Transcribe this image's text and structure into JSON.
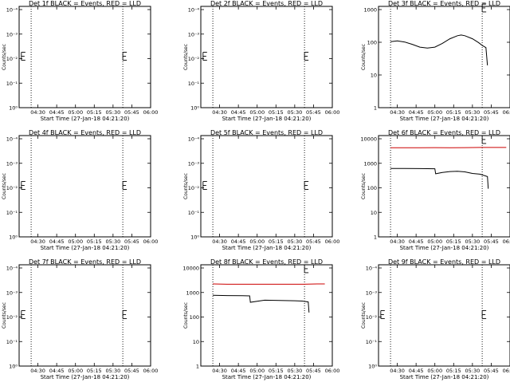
{
  "chart_data": [
    {
      "id": "det1",
      "type": "line",
      "title": "Det 1f BLACK = Events, RED = LLD",
      "xlabel": "Start Time (27-Jan-18 04:21:20)",
      "ylabel": "Counts/sec",
      "yscale": "log",
      "ylim": [
        0.5,
        1.2
      ],
      "xlim": [
        4.25,
        6.0
      ],
      "x_ticks": [
        "04:30",
        "04:45",
        "05:00",
        "05:15",
        "05:30",
        "05:45",
        "06:00"
      ],
      "y_ticks": [
        "10^0",
        "10^-1",
        "10^-2",
        "10^-3",
        "10^-4"
      ],
      "marks": [
        4.41,
        5.63
      ],
      "series": [],
      "e_markers": [
        {
          "x": 4.28,
          "y": 0.78
        },
        {
          "x": 5.63,
          "y": 0.78
        }
      ]
    },
    {
      "id": "det2",
      "type": "line",
      "title": "Det 2f BLACK = Events, RED = LLD",
      "xlabel": "Start Time (27-Jan-18 04:21:20)",
      "ylabel": "Counts/sec",
      "yscale": "log",
      "ylim": [
        0.5,
        1.2
      ],
      "xlim": [
        4.25,
        6.0
      ],
      "x_ticks": [
        "04:30",
        "04:45",
        "05:00",
        "05:15",
        "05:30",
        "05:45",
        "06:00"
      ],
      "y_ticks": [
        "10^0",
        "10^-1",
        "10^-2",
        "10^-3",
        "10^-4"
      ],
      "marks": [
        4.41,
        5.63
      ],
      "series": [],
      "e_markers": [
        {
          "x": 4.28,
          "y": 0.78
        },
        {
          "x": 5.63,
          "y": 0.78
        }
      ]
    },
    {
      "id": "det3",
      "type": "line",
      "title": "Det 3f BLACK = Events, RED = LLD",
      "xlabel": "Start Time (27-Jan-18 04:21:20)",
      "ylabel": "Counts/sec",
      "yscale": "log",
      "ylim": [
        1,
        1000
      ],
      "xlim": [
        4.25,
        6.0
      ],
      "x_ticks": [
        "04:30",
        "04:45",
        "05:00",
        "05:15",
        "05:30",
        "05:45",
        "06:00"
      ],
      "y_ticks": [
        "1",
        "10",
        "100",
        "1000"
      ],
      "marks": [
        4.41,
        5.63
      ],
      "e_markers": [
        {
          "x": 5.63,
          "y": 900
        }
      ],
      "series": [
        {
          "color": "#000000",
          "points": [
            [
              4.41,
              90
            ],
            [
              4.5,
              95
            ],
            [
              4.6,
              88
            ],
            [
              4.7,
              75
            ],
            [
              4.8,
              62
            ],
            [
              4.9,
              58
            ],
            [
              5.0,
              62
            ],
            [
              5.1,
              80
            ],
            [
              5.2,
              110
            ],
            [
              5.3,
              135
            ],
            [
              5.35,
              142
            ],
            [
              5.4,
              135
            ],
            [
              5.5,
              110
            ],
            [
              5.58,
              85
            ],
            [
              5.63,
              70
            ],
            [
              5.68,
              60
            ],
            [
              5.7,
              18
            ]
          ]
        }
      ]
    },
    {
      "id": "det4",
      "type": "line",
      "title": "Det 4f BLACK = Events, RED = LLD",
      "xlabel": "Start Time (27-Jan-18 04:21:20)",
      "ylabel": "Counts/sec",
      "yscale": "log",
      "ylim": [
        0.5,
        1.2
      ],
      "xlim": [
        4.25,
        6.0
      ],
      "x_ticks": [
        "04:30",
        "04:45",
        "05:00",
        "05:15",
        "05:30",
        "05:45",
        "06:00"
      ],
      "y_ticks": [
        "10^0",
        "10^-1",
        "10^-2",
        "10^-3",
        "10^-4"
      ],
      "marks": [
        4.41,
        5.63
      ],
      "series": [],
      "e_markers": [
        {
          "x": 4.28,
          "y": 0.78
        },
        {
          "x": 5.63,
          "y": 0.78
        }
      ]
    },
    {
      "id": "det5",
      "type": "line",
      "title": "Det 5f BLACK = Events, RED = LLD",
      "xlabel": "Start Time (27-Jan-18 04:21:20)",
      "ylabel": "Counts/sec",
      "yscale": "log",
      "ylim": [
        0.5,
        1.2
      ],
      "xlim": [
        4.25,
        6.0
      ],
      "x_ticks": [
        "04:30",
        "04:45",
        "05:00",
        "05:15",
        "05:30",
        "05:45",
        "06:00"
      ],
      "y_ticks": [
        "10^0",
        "10^-1",
        "10^-2",
        "10^-3",
        "10^-4"
      ],
      "marks": [
        4.41,
        5.63
      ],
      "series": [],
      "e_markers": [
        {
          "x": 4.28,
          "y": 0.78
        },
        {
          "x": 5.63,
          "y": 0.78
        }
      ]
    },
    {
      "id": "det6",
      "type": "line",
      "title": "Det 6f BLACK = Events, RED = LLD",
      "xlabel": "Start Time (27-Jan-18 04:21:20)",
      "ylabel": "Counts/sec",
      "yscale": "log",
      "ylim": [
        1,
        10000
      ],
      "xlim": [
        4.25,
        6.0
      ],
      "x_ticks": [
        "04:30",
        "04:45",
        "05:00",
        "05:15",
        "05:30",
        "05:45",
        "06:00"
      ],
      "y_ticks": [
        "1",
        "10",
        "100",
        "1000",
        "10000"
      ],
      "marks": [
        4.41,
        5.63
      ],
      "e_markers": [
        {
          "x": 5.63,
          "y": 7000
        }
      ],
      "series": [
        {
          "color": "#cc0000",
          "points": [
            [
              4.41,
              3300
            ],
            [
              4.6,
              3300
            ],
            [
              4.8,
              3300
            ],
            [
              5.0,
              3350
            ],
            [
              5.2,
              3300
            ],
            [
              5.4,
              3350
            ],
            [
              5.6,
              3400
            ],
            [
              5.8,
              3400
            ],
            [
              5.95,
              3400
            ]
          ]
        },
        {
          "color": "#000000",
          "points": [
            [
              4.41,
              500
            ],
            [
              4.6,
              500
            ],
            [
              4.8,
              495
            ],
            [
              5.0,
              490
            ],
            [
              5.01,
              310
            ],
            [
              5.1,
              350
            ],
            [
              5.2,
              380
            ],
            [
              5.3,
              390
            ],
            [
              5.4,
              370
            ],
            [
              5.5,
              320
            ],
            [
              5.6,
              300
            ],
            [
              5.7,
              240
            ],
            [
              5.71,
              80
            ]
          ]
        }
      ]
    },
    {
      "id": "det7",
      "type": "line",
      "title": "Det 7f BLACK = Events, RED = LLD",
      "xlabel": "Start Time (27-Jan-18 04:21:20)",
      "ylabel": "Counts/sec",
      "yscale": "log",
      "ylim": [
        0.5,
        1.2
      ],
      "xlim": [
        4.25,
        6.0
      ],
      "x_ticks": [
        "04:30",
        "04:45",
        "05:00",
        "05:15",
        "05:30",
        "05:45",
        "06:00"
      ],
      "y_ticks": [
        "10^0",
        "10^-1",
        "10^-2",
        "10^-3",
        "10^-4"
      ],
      "marks": [
        4.41,
        5.63
      ],
      "series": [],
      "e_markers": [
        {
          "x": 4.28,
          "y": 0.78
        },
        {
          "x": 5.63,
          "y": 0.78
        }
      ]
    },
    {
      "id": "det8",
      "type": "line",
      "title": "Det 8f BLACK = Events, RED = LLD",
      "xlabel": "Start Time (27-Jan-18 04:21:20)",
      "ylabel": "Counts/sec",
      "yscale": "log",
      "ylim": [
        1,
        10000
      ],
      "xlim": [
        4.25,
        6.0
      ],
      "x_ticks": [
        "04:30",
        "04:45",
        "05:00",
        "05:15",
        "05:30",
        "05:45",
        "06:00"
      ],
      "y_ticks": [
        "1",
        "10",
        "100",
        "1000",
        "10000"
      ],
      "marks": [
        4.41,
        5.63
      ],
      "e_markers": [
        {
          "x": 5.63,
          "y": 7000
        }
      ],
      "series": [
        {
          "color": "#cc0000",
          "points": [
            [
              4.41,
              1750
            ],
            [
              4.6,
              1700
            ],
            [
              4.8,
              1700
            ],
            [
              5.0,
              1700
            ],
            [
              5.2,
              1700
            ],
            [
              5.4,
              1700
            ],
            [
              5.6,
              1700
            ],
            [
              5.8,
              1750
            ],
            [
              5.9,
              1750
            ]
          ]
        },
        {
          "color": "#000000",
          "points": [
            [
              4.41,
              620
            ],
            [
              4.6,
              610
            ],
            [
              4.8,
              600
            ],
            [
              4.9,
              590
            ],
            [
              4.91,
              330
            ],
            [
              5.1,
              400
            ],
            [
              5.3,
              390
            ],
            [
              5.5,
              380
            ],
            [
              5.6,
              370
            ],
            [
              5.68,
              340
            ],
            [
              5.69,
              130
            ]
          ]
        }
      ]
    },
    {
      "id": "det9",
      "type": "line",
      "title": "Det 9f BLACK = Events, RED = LLD",
      "xlabel": "Start Time (27-Jan-18 04:21:20)",
      "ylabel": "Counts/sec",
      "yscale": "log",
      "ylim": [
        0.5,
        1.2
      ],
      "xlim": [
        4.25,
        6.0
      ],
      "x_ticks": [
        "04:30",
        "04:45",
        "05:00",
        "05:15",
        "05:30",
        "05:45",
        "06:00"
      ],
      "y_ticks": [
        "10^0",
        "10^-1",
        "10^-2",
        "10^-3",
        "10^-4"
      ],
      "marks": [
        4.41,
        5.63
      ],
      "series": [],
      "e_markers": [
        {
          "x": 4.28,
          "y": 0.78
        },
        {
          "x": 5.63,
          "y": 0.78
        }
      ]
    }
  ]
}
